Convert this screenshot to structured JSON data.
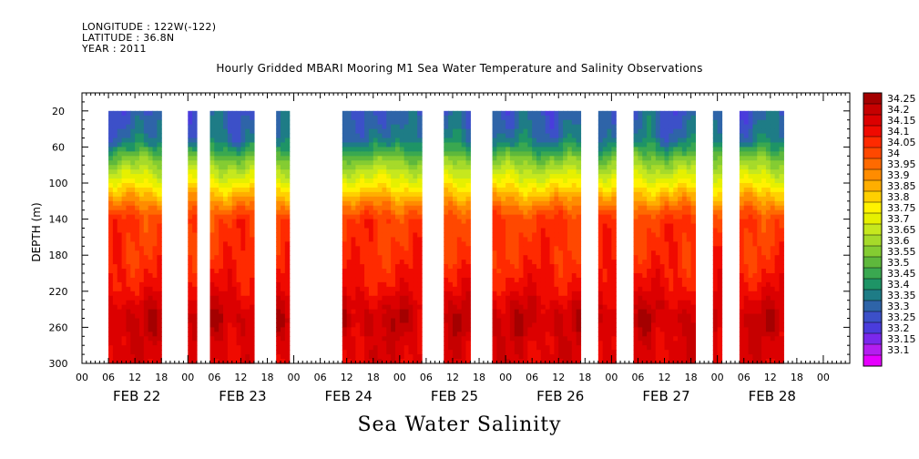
{
  "header": {
    "longitude": "LONGITUDE : 122W(-122)",
    "latitude": "LATITUDE : 36.8N",
    "year": "YEAR : 2011"
  },
  "chart_data": {
    "type": "heatmap",
    "title": "Hourly Gridded MBARI Mooring M1 Sea Water Temperature and Salinity Observations",
    "caption": "Sea Water Salinity",
    "ylabel": "DEPTH (m)",
    "ylim": [
      300,
      0
    ],
    "yticks": [
      "20",
      "60",
      "100",
      "140",
      "180",
      "220",
      "260",
      "300"
    ],
    "ytick_values": [
      20,
      60,
      100,
      140,
      180,
      220,
      260,
      300
    ],
    "xlim_hours": [
      0,
      174
    ],
    "hour_tick_labels": [
      "00",
      "06",
      "12",
      "18"
    ],
    "day_labels": [
      "FEB 22",
      "FEB 23",
      "FEB 24",
      "FEB 25",
      "FEB 26",
      "FEB 27",
      "FEB 28"
    ],
    "data_depth_range": [
      20,
      300
    ],
    "data_segments_hours": [
      [
        6,
        18
      ],
      [
        24,
        26
      ],
      [
        29,
        39
      ],
      [
        44,
        47
      ],
      [
        59,
        77
      ],
      [
        82,
        88
      ],
      [
        93,
        113
      ],
      [
        117,
        121
      ],
      [
        125,
        139
      ],
      [
        143,
        145
      ],
      [
        149,
        159
      ]
    ],
    "colorbar_levels": [
      "34.25",
      "34.2",
      "34.15",
      "34.1",
      "34.05",
      "34",
      "33.95",
      "33.9",
      "33.85",
      "33.8",
      "33.75",
      "33.7",
      "33.65",
      "33.6",
      "33.55",
      "33.5",
      "33.45",
      "33.4",
      "33.35",
      "33.3",
      "33.25",
      "33.2",
      "33.15",
      "33.1"
    ],
    "colorbar_colors": [
      "#a40000",
      "#c60000",
      "#dc0000",
      "#f00a00",
      "#ff2a00",
      "#ff4800",
      "#ff6a00",
      "#ff8c00",
      "#ffae00",
      "#ffd000",
      "#fff200",
      "#e6f000",
      "#c6e81e",
      "#a6da2a",
      "#84cc32",
      "#5eb83c",
      "#3aa850",
      "#1e9466",
      "#1e7c86",
      "#2e64a8",
      "#3c50c8",
      "#4a3cdc",
      "#7a28ec",
      "#b41ef0",
      "#e600ff"
    ],
    "profile": [
      {
        "depth": 20,
        "value": 33.3
      },
      {
        "depth": 50,
        "value": 33.35
      },
      {
        "depth": 62,
        "value": 33.45
      },
      {
        "depth": 72,
        "value": 33.55
      },
      {
        "depth": 85,
        "value": 33.65
      },
      {
        "depth": 100,
        "value": 33.75
      },
      {
        "depth": 112,
        "value": 33.85
      },
      {
        "depth": 125,
        "value": 33.95
      },
      {
        "depth": 140,
        "value": 34.05
      },
      {
        "depth": 180,
        "value": 34.07
      },
      {
        "depth": 215,
        "value": 34.12
      },
      {
        "depth": 235,
        "value": 34.18
      },
      {
        "depth": 250,
        "value": 34.22
      },
      {
        "depth": 275,
        "value": 34.18
      },
      {
        "depth": 300,
        "value": 34.17
      }
    ]
  }
}
